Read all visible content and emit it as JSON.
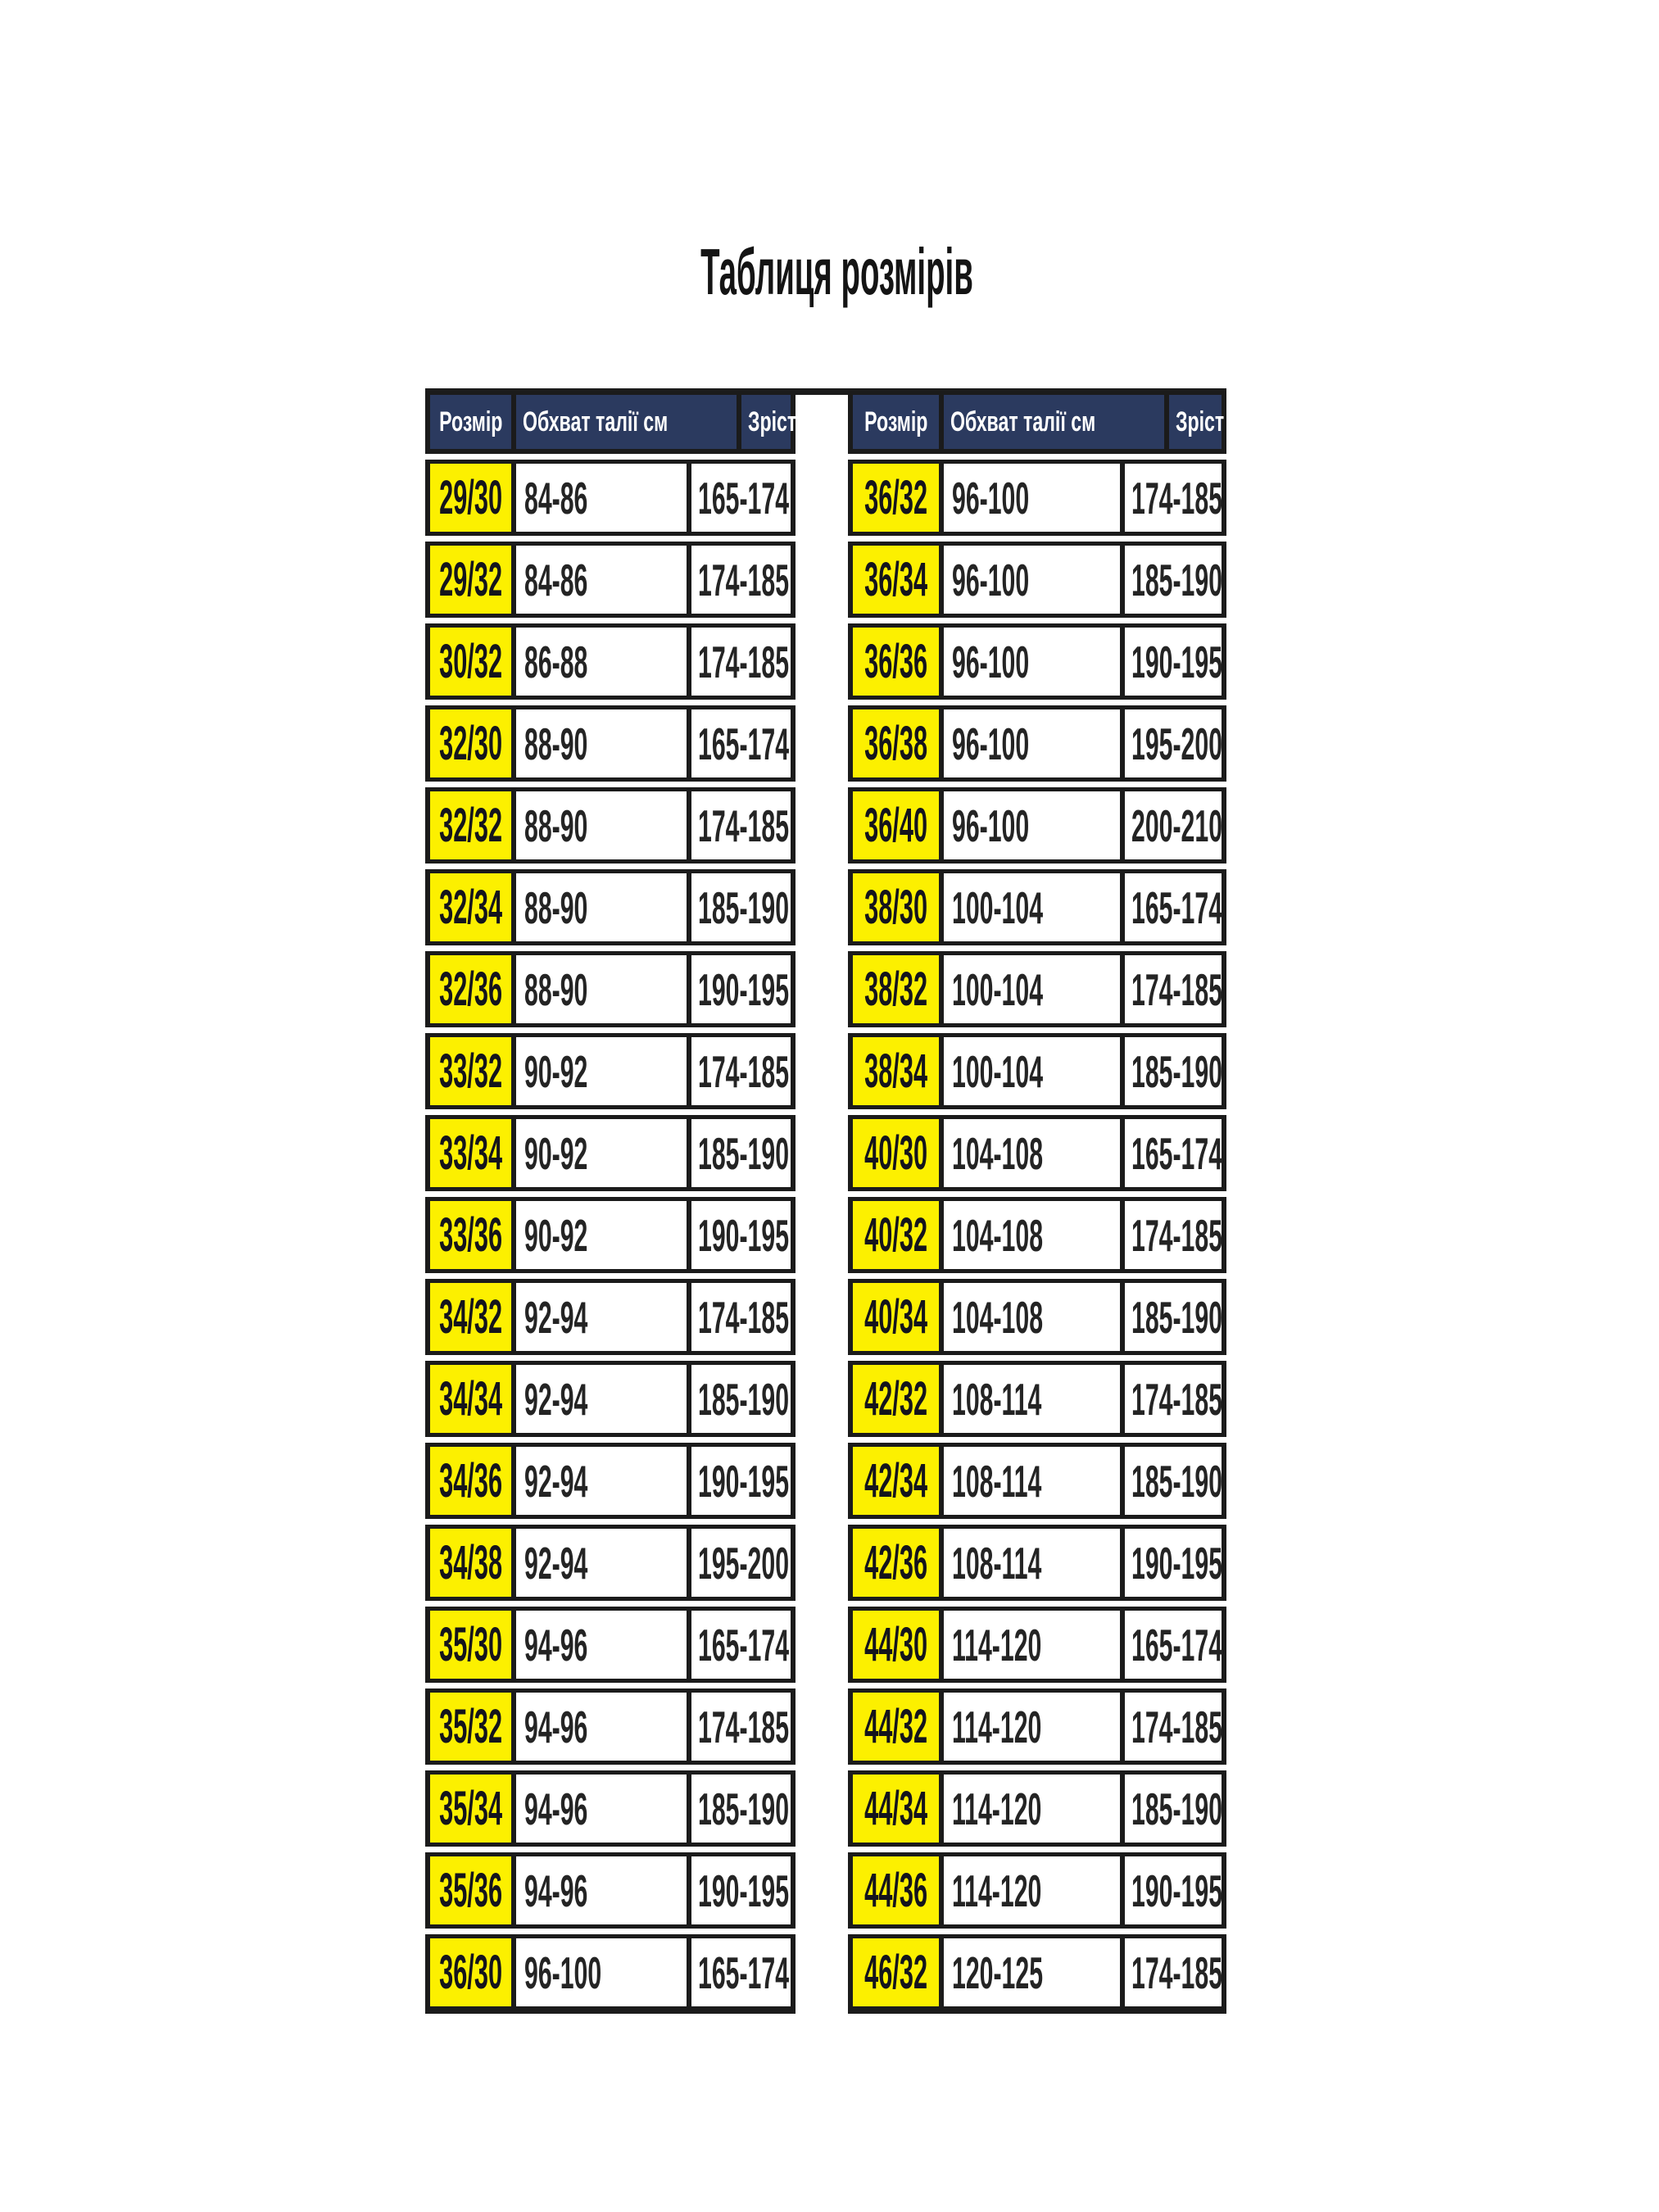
{
  "title": "Таблиця розмірів",
  "columns": {
    "size": "Розмір",
    "waist": "Обхват талії см",
    "height": "Зріст см"
  },
  "colors": {
    "header_bg": "#2b3a5f",
    "header_text": "#ffffff",
    "size_cell_bg": "#fcf000",
    "size_cell_text": "#14141c",
    "border": "#1b1b1b",
    "value_text": "#242424",
    "page_bg": "#ffffff"
  },
  "tables": {
    "left": {
      "rows": [
        {
          "size": "29/30",
          "waist": "84-86",
          "height": "165-174"
        },
        {
          "size": "29/32",
          "waist": "84-86",
          "height": "174-185"
        },
        {
          "size": "30/32",
          "waist": "86-88",
          "height": "174-185"
        },
        {
          "size": "32/30",
          "waist": "88-90",
          "height": "165-174"
        },
        {
          "size": "32/32",
          "waist": "88-90",
          "height": "174-185"
        },
        {
          "size": "32/34",
          "waist": "88-90",
          "height": "185-190"
        },
        {
          "size": "32/36",
          "waist": "88-90",
          "height": "190-195"
        },
        {
          "size": "33/32",
          "waist": "90-92",
          "height": "174-185"
        },
        {
          "size": "33/34",
          "waist": "90-92",
          "height": "185-190"
        },
        {
          "size": "33/36",
          "waist": "90-92",
          "height": "190-195"
        },
        {
          "size": "34/32",
          "waist": "92-94",
          "height": "174-185"
        },
        {
          "size": "34/34",
          "waist": "92-94",
          "height": "185-190"
        },
        {
          "size": "34/36",
          "waist": "92-94",
          "height": "190-195"
        },
        {
          "size": "34/38",
          "waist": "92-94",
          "height": "195-200"
        },
        {
          "size": "35/30",
          "waist": "94-96",
          "height": "165-174"
        },
        {
          "size": "35/32",
          "waist": "94-96",
          "height": "174-185"
        },
        {
          "size": "35/34",
          "waist": "94-96",
          "height": "185-190"
        },
        {
          "size": "35/36",
          "waist": "94-96",
          "height": "190-195"
        },
        {
          "size": "36/30",
          "waist": "96-100",
          "height": "165-174"
        }
      ]
    },
    "right": {
      "rows": [
        {
          "size": "36/32",
          "waist": "96-100",
          "height": "174-185"
        },
        {
          "size": "36/34",
          "waist": "96-100",
          "height": "185-190"
        },
        {
          "size": "36/36",
          "waist": "96-100",
          "height": "190-195"
        },
        {
          "size": "36/38",
          "waist": "96-100",
          "height": "195-200"
        },
        {
          "size": "36/40",
          "waist": "96-100",
          "height": "200-210"
        },
        {
          "size": "38/30",
          "waist": "100-104",
          "height": "165-174"
        },
        {
          "size": "38/32",
          "waist": "100-104",
          "height": "174-185"
        },
        {
          "size": "38/34",
          "waist": "100-104",
          "height": "185-190"
        },
        {
          "size": "40/30",
          "waist": "104-108",
          "height": "165-174"
        },
        {
          "size": "40/32",
          "waist": "104-108",
          "height": "174-185"
        },
        {
          "size": "40/34",
          "waist": "104-108",
          "height": "185-190"
        },
        {
          "size": "42/32",
          "waist": "108-114",
          "height": "174-185"
        },
        {
          "size": "42/34",
          "waist": "108-114",
          "height": "185-190"
        },
        {
          "size": "42/36",
          "waist": "108-114",
          "height": "190-195"
        },
        {
          "size": "44/30",
          "waist": "114-120",
          "height": "165-174"
        },
        {
          "size": "44/32",
          "waist": "114-120",
          "height": "174-185"
        },
        {
          "size": "44/34",
          "waist": "114-120",
          "height": "185-190"
        },
        {
          "size": "44/36",
          "waist": "114-120",
          "height": "190-195"
        },
        {
          "size": "46/32",
          "waist": "120-125",
          "height": "174-185"
        }
      ]
    }
  }
}
